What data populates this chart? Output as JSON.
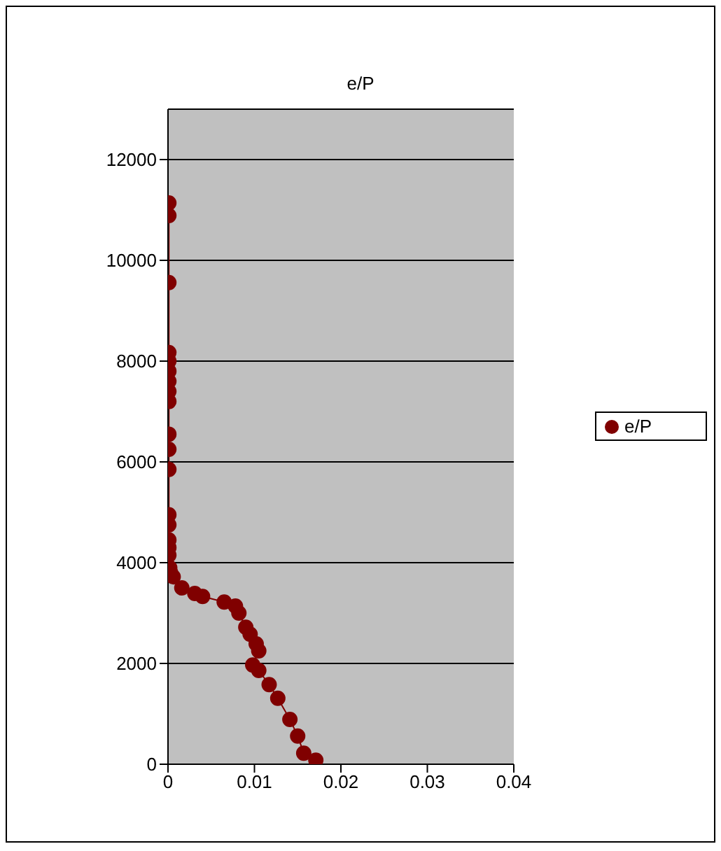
{
  "chart_data": {
    "type": "line",
    "title": "e/P",
    "legend": "right",
    "marker": "circle",
    "grid": "y",
    "xlim": [
      0,
      0.04
    ],
    "xticks": [
      0,
      0.01,
      0.02,
      0.03,
      0.04
    ],
    "ylim": [
      0,
      13000
    ],
    "yticks": [
      0,
      2000,
      4000,
      6000,
      8000,
      10000,
      12000
    ],
    "series": [
      {
        "name": "e/P",
        "color": "#800000",
        "x": [
          0.0001,
          0.0001,
          0.0001,
          0.0001,
          0.0001,
          0.0001,
          0.0001,
          0.0001,
          0.0001,
          0.0001,
          0.0001,
          0.0001,
          0.0001,
          0.0001,
          0.0001,
          0.0001,
          0.0001,
          0.0002,
          0.0003,
          0.0006,
          0.0016,
          0.0031,
          0.004,
          0.0065,
          0.0078,
          0.0082,
          0.009,
          0.0095,
          0.0102,
          0.0105,
          0.0098,
          0.0105,
          0.0117,
          0.0127,
          0.0141,
          0.015,
          0.0157,
          0.0171
        ],
        "values": [
          11140,
          10890,
          9560,
          8170,
          8000,
          7800,
          7600,
          7400,
          7200,
          6550,
          6250,
          5850,
          4950,
          4750,
          4450,
          4300,
          4150,
          3900,
          3800,
          3720,
          3500,
          3390,
          3330,
          3220,
          3140,
          3000,
          2720,
          2580,
          2390,
          2250,
          1970,
          1860,
          1580,
          1310,
          890,
          560,
          220,
          80
        ]
      }
    ]
  }
}
